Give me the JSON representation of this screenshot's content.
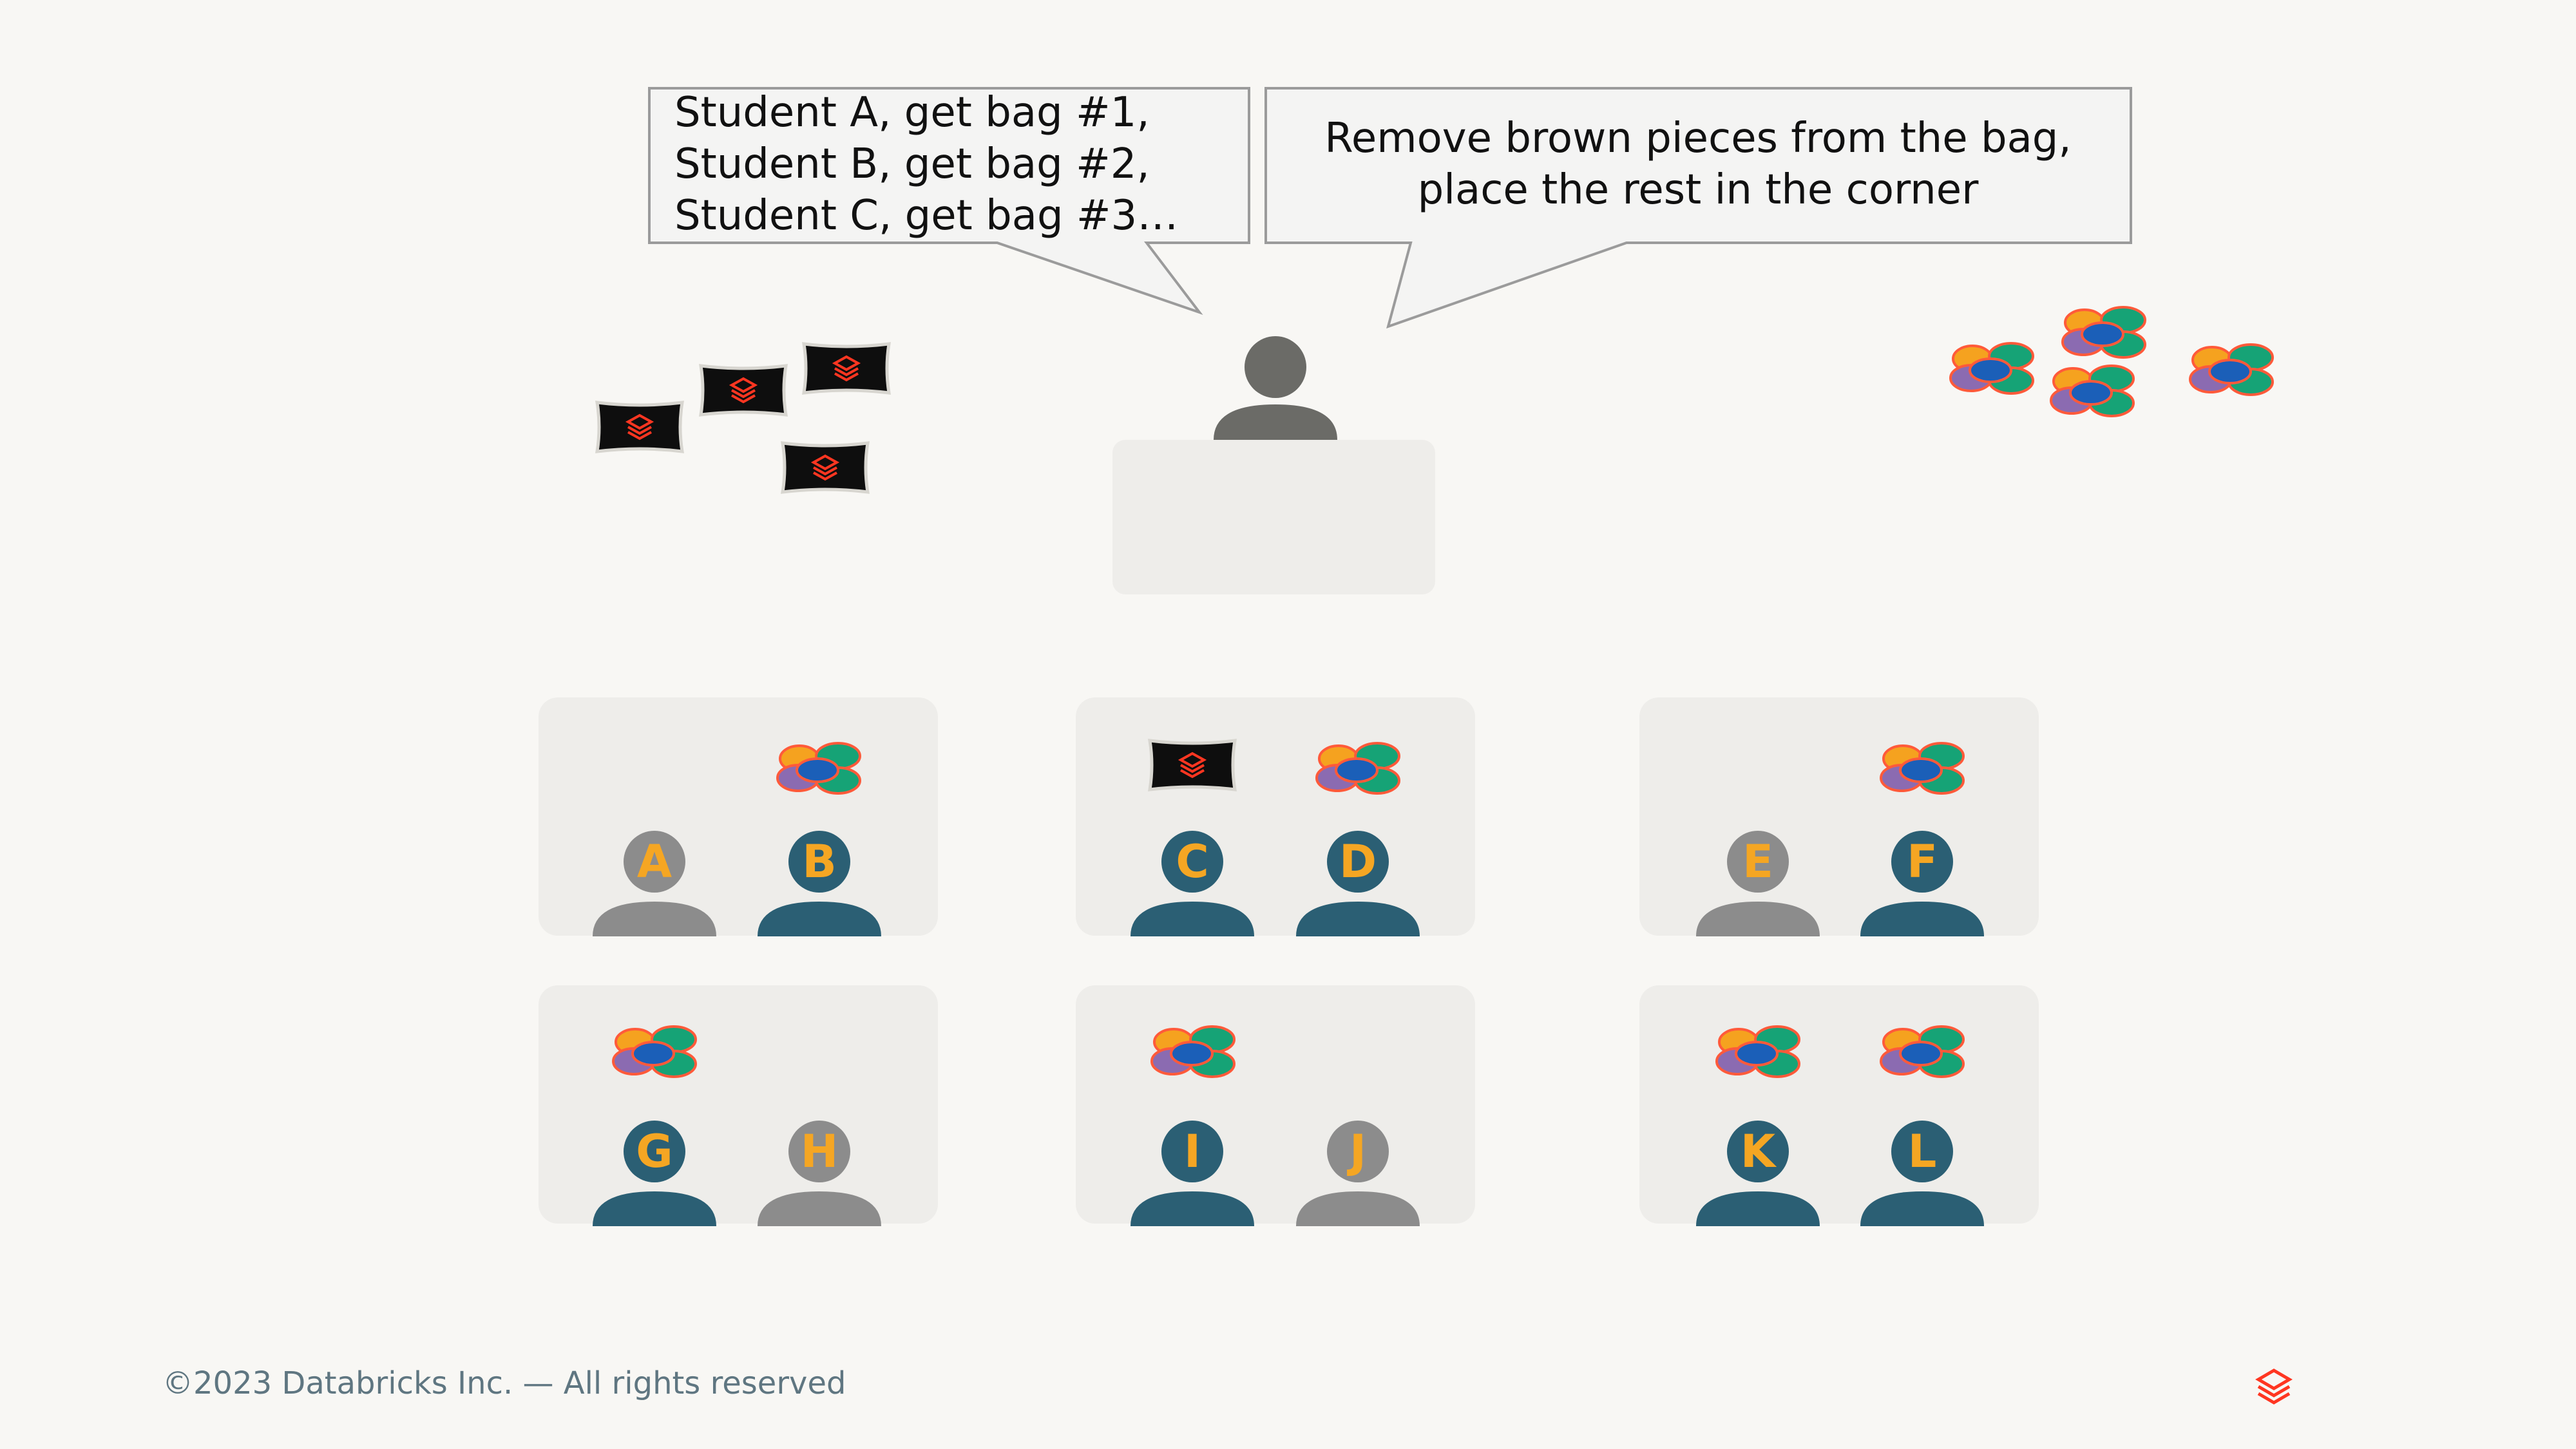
{
  "bubble_left": {
    "lines": [
      "Student A, get bag #1,",
      "Student B, get bag #2,",
      "Student C, get bag #3…"
    ]
  },
  "bubble_right": {
    "lines": [
      "Remove brown pieces from the bag,",
      "place the rest in the corner"
    ]
  },
  "students": [
    {
      "letter": "A",
      "active": false
    },
    {
      "letter": "B",
      "active": true
    },
    {
      "letter": "C",
      "active": true
    },
    {
      "letter": "D",
      "active": true
    },
    {
      "letter": "E",
      "active": false
    },
    {
      "letter": "F",
      "active": true
    },
    {
      "letter": "G",
      "active": true
    },
    {
      "letter": "H",
      "active": false
    },
    {
      "letter": "I",
      "active": true
    },
    {
      "letter": "J",
      "active": false
    },
    {
      "letter": "K",
      "active": true
    },
    {
      "letter": "L",
      "active": true
    }
  ],
  "colors": {
    "background": "#f8f7f4",
    "desk": "#eeedea",
    "active_person": "#2b5f74",
    "inactive_person": "#8c8c8c",
    "teacher": "#6b6b67",
    "letter": "#f5a623",
    "bag": "#0e0e0e",
    "brand": "#ff3621",
    "jelly_orange": "#f5a21f",
    "jelly_green": "#16a376",
    "jelly_purple": "#8b6bb1",
    "jelly_blue": "#1b5fb8",
    "jelly_outline": "#ff5a3a"
  },
  "footer": {
    "copyright": "©2023 Databricks Inc. — All rights reserved"
  },
  "icons": [
    "teacher-icon",
    "bag-icon",
    "jellybean-cluster-icon",
    "student-icon",
    "databricks-logo-icon"
  ]
}
